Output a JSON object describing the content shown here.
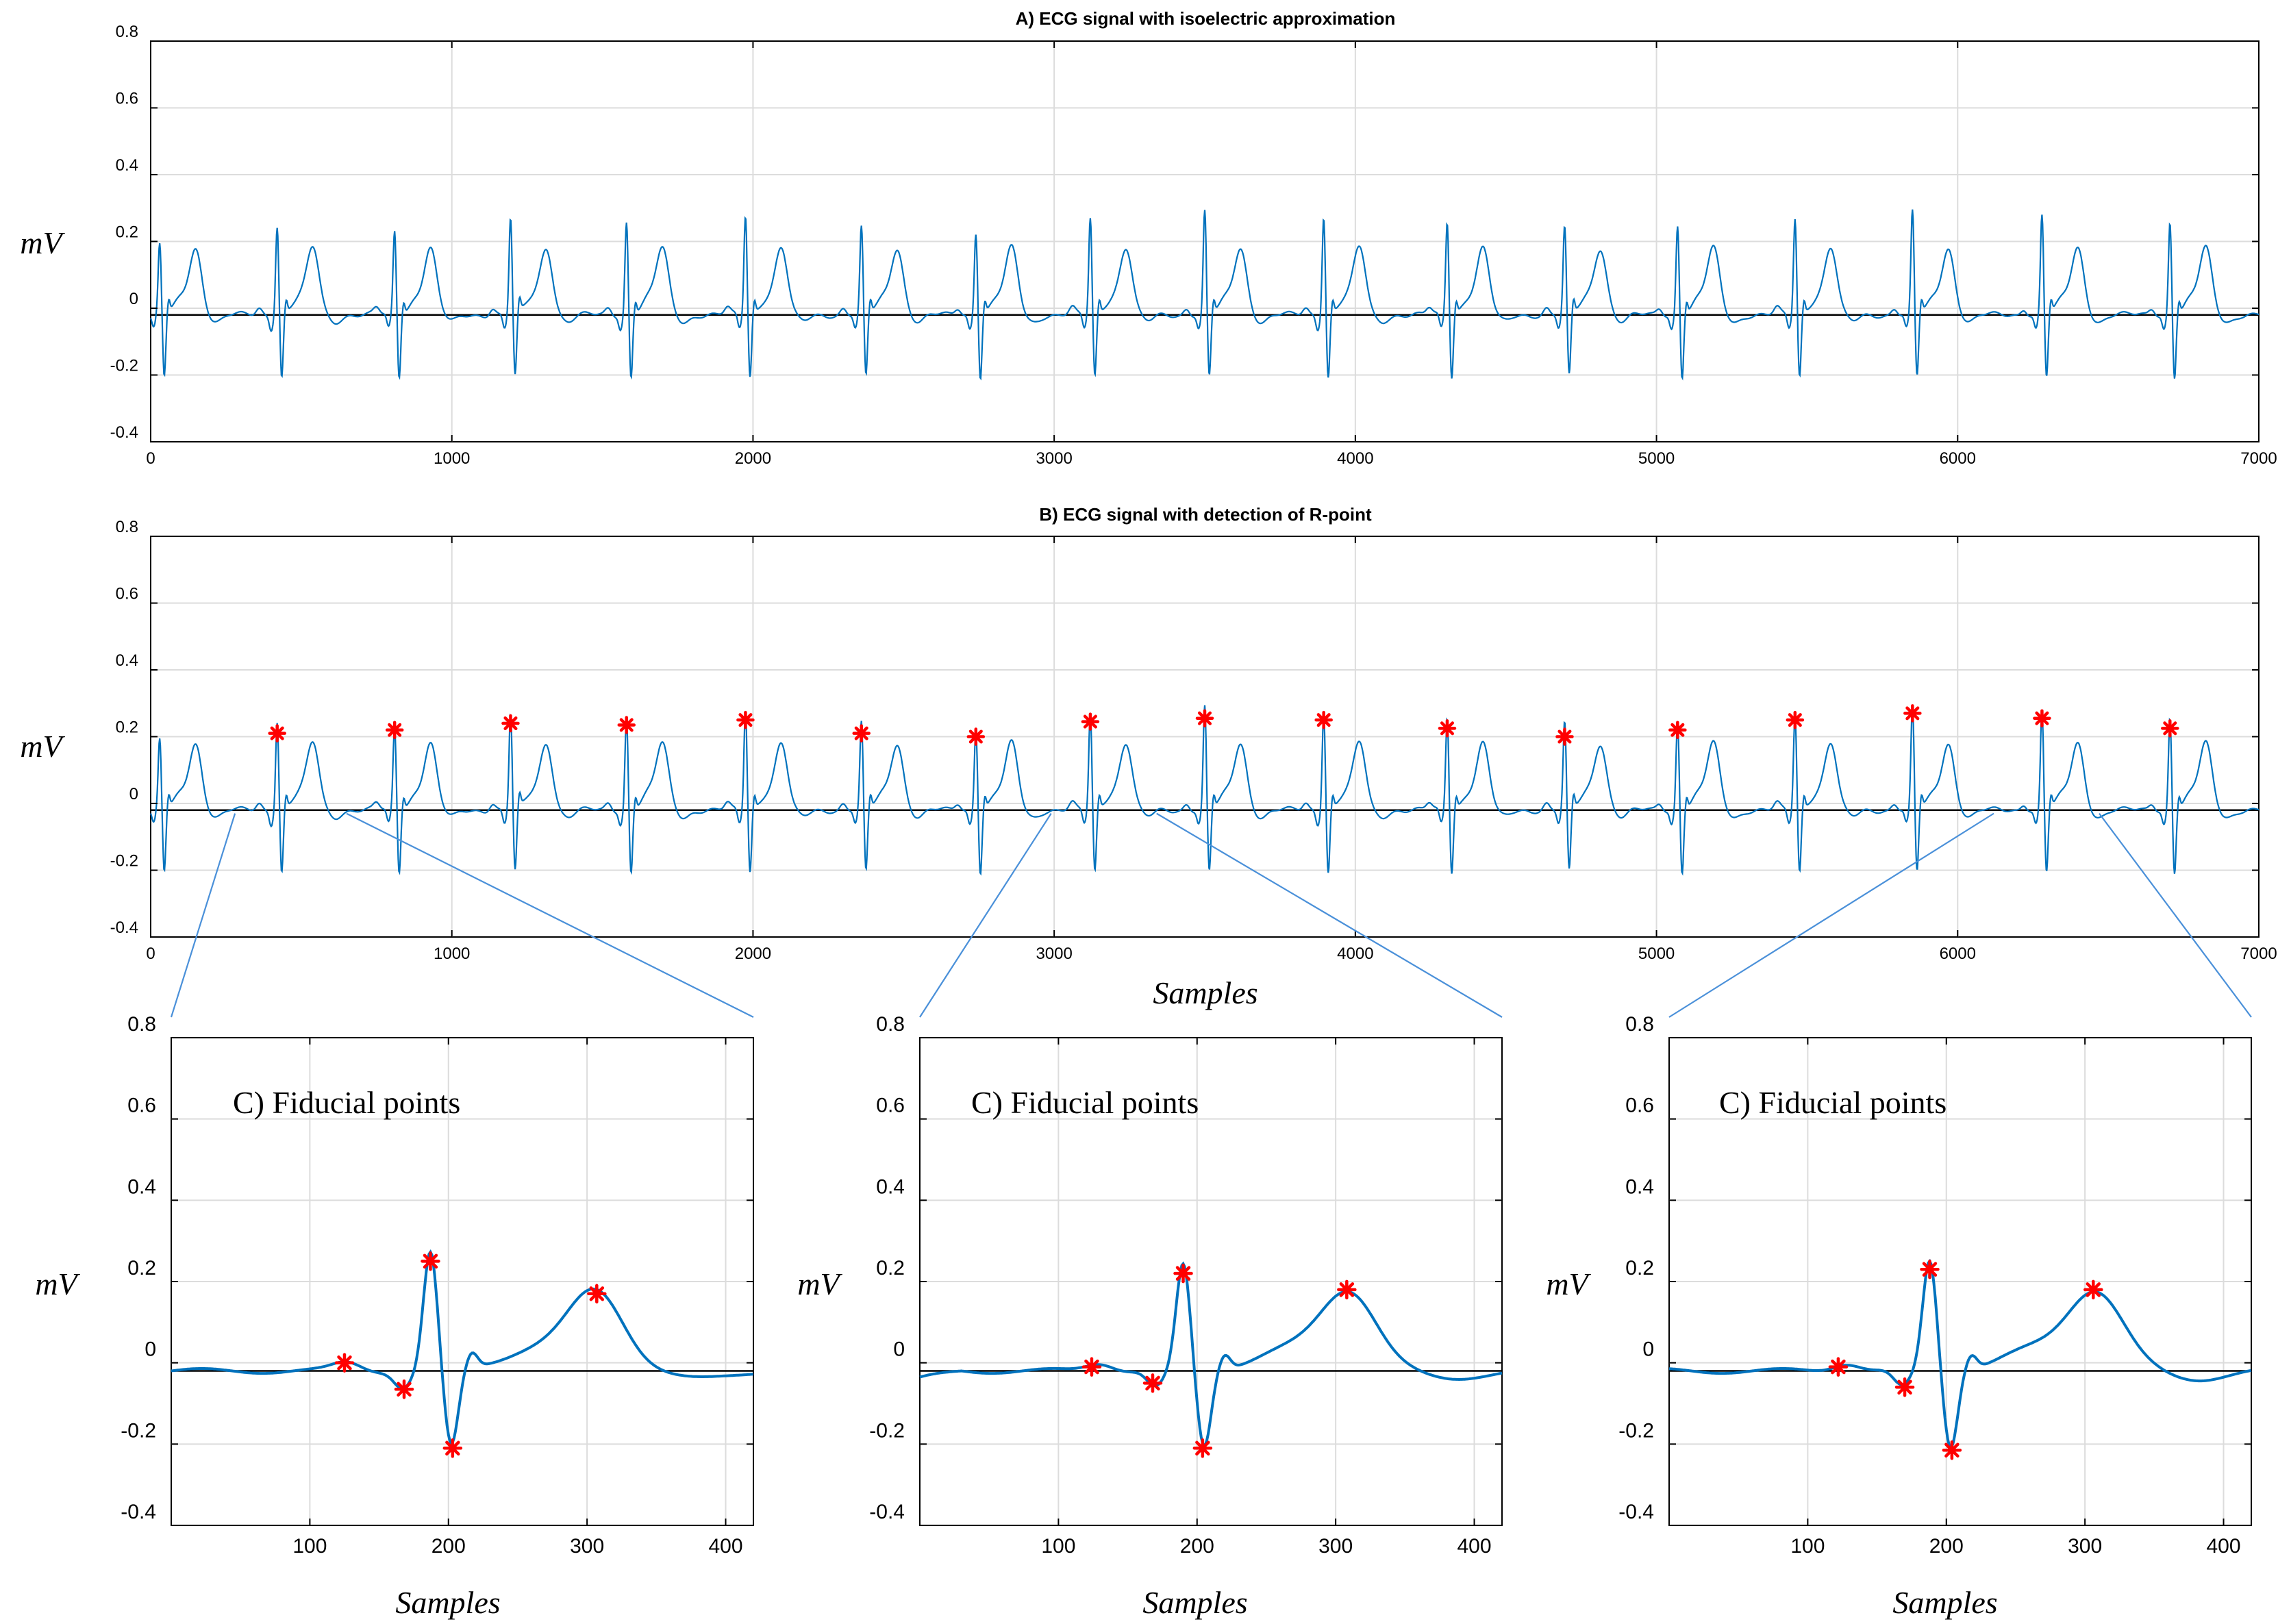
{
  "colors": {
    "signal": "#0072bd",
    "marker": "#ff0000",
    "zoom_line": "#4a90d9",
    "baseline": "#000000"
  },
  "chart_data": [
    {
      "id": "A",
      "type": "line",
      "title": "A) ECG signal with isoelectric approximation",
      "ylabel": "mV",
      "xlabel": "",
      "xlim": [
        0,
        7000
      ],
      "ylim": [
        -0.4,
        0.8
      ],
      "xticks": [
        0,
        1000,
        2000,
        3000,
        4000,
        5000,
        6000,
        7000
      ],
      "yticks": [
        -0.4,
        -0.2,
        0,
        0.2,
        0.4,
        0.6,
        0.8
      ],
      "ytick_labels": [
        "-0.4",
        "-0.2",
        "0",
        "0.2",
        "0.4",
        "0.6",
        "0.8"
      ],
      "grid": true,
      "isoelectric": -0.02,
      "beats": [
        {
          "r": 30,
          "amp": 0.18
        },
        {
          "r": 420,
          "amp": 0.24
        },
        {
          "r": 810,
          "amp": 0.22
        },
        {
          "r": 1195,
          "amp": 0.26
        },
        {
          "r": 1580,
          "amp": 0.25
        },
        {
          "r": 1975,
          "amp": 0.27
        },
        {
          "r": 2360,
          "amp": 0.23
        },
        {
          "r": 2740,
          "amp": 0.22
        },
        {
          "r": 3120,
          "amp": 0.26
        },
        {
          "r": 3500,
          "amp": 0.28
        },
        {
          "r": 3895,
          "amp": 0.27
        },
        {
          "r": 4305,
          "amp": 0.25
        },
        {
          "r": 4695,
          "amp": 0.23
        },
        {
          "r": 5070,
          "amp": 0.24
        },
        {
          "r": 5460,
          "amp": 0.26
        },
        {
          "r": 5850,
          "amp": 0.28
        },
        {
          "r": 6280,
          "amp": 0.27
        },
        {
          "r": 6705,
          "amp": 0.25
        }
      ]
    },
    {
      "id": "B",
      "type": "line",
      "title": "B) ECG signal with detection of R-point",
      "ylabel": "mV",
      "xlabel": "Samples",
      "xlim": [
        0,
        7000
      ],
      "ylim": [
        -0.4,
        0.8
      ],
      "xticks": [
        0,
        1000,
        2000,
        3000,
        4000,
        5000,
        6000,
        7000
      ],
      "yticks": [
        -0.4,
        -0.2,
        0,
        0.2,
        0.4,
        0.6,
        0.8
      ],
      "ytick_labels": [
        "-0.4",
        "-0.2",
        "0",
        "0.2",
        "0.4",
        "0.6",
        "0.8"
      ],
      "grid": true,
      "isoelectric": -0.02,
      "r_points": [
        {
          "x": 420,
          "y": 0.21
        },
        {
          "x": 810,
          "y": 0.22
        },
        {
          "x": 1195,
          "y": 0.24
        },
        {
          "x": 1580,
          "y": 0.235
        },
        {
          "x": 1975,
          "y": 0.25
        },
        {
          "x": 2360,
          "y": 0.21
        },
        {
          "x": 2740,
          "y": 0.2
        },
        {
          "x": 3120,
          "y": 0.245
        },
        {
          "x": 3500,
          "y": 0.255
        },
        {
          "x": 3895,
          "y": 0.25
        },
        {
          "x": 4305,
          "y": 0.225
        },
        {
          "x": 4695,
          "y": 0.2
        },
        {
          "x": 5070,
          "y": 0.22
        },
        {
          "x": 5460,
          "y": 0.25
        },
        {
          "x": 5850,
          "y": 0.27
        },
        {
          "x": 6280,
          "y": 0.255
        },
        {
          "x": 6705,
          "y": 0.225
        }
      ],
      "zoom_windows": [
        [
          280,
          650
        ],
        [
          2990,
          3340
        ],
        [
          6120,
          6470
        ]
      ]
    },
    {
      "id": "C1",
      "type": "line",
      "annotation": "C) Fiducial points",
      "ylabel": "mV",
      "xlabel": "Samples",
      "xlim": [
        0,
        420
      ],
      "ylim": [
        -0.4,
        0.8
      ],
      "xticks": [
        100,
        200,
        300,
        400
      ],
      "yticks": [
        -0.4,
        -0.2,
        0,
        0.2,
        0.4,
        0.6,
        0.8
      ],
      "ytick_labels": [
        "-0.4",
        "-0.2",
        "0",
        "0.2",
        "0.4",
        "0.6",
        "0.8"
      ],
      "grid": true,
      "isoelectric": -0.02,
      "fiducial_points": [
        {
          "x": 125,
          "y": 0.0
        },
        {
          "x": 168,
          "y": -0.065
        },
        {
          "x": 187,
          "y": 0.25
        },
        {
          "x": 203,
          "y": -0.21
        },
        {
          "x": 307,
          "y": 0.17
        }
      ]
    },
    {
      "id": "C2",
      "type": "line",
      "annotation": "C) Fiducial points",
      "ylabel": "mV",
      "xlabel": "Samples",
      "xlim": [
        0,
        420
      ],
      "ylim": [
        -0.4,
        0.8
      ],
      "xticks": [
        100,
        200,
        300,
        400
      ],
      "yticks": [
        -0.4,
        -0.2,
        0,
        0.2,
        0.4,
        0.6,
        0.8
      ],
      "ytick_labels": [
        "-0.4",
        "-0.2",
        "0",
        "0.2",
        "0.4",
        "0.6",
        "0.8"
      ],
      "grid": true,
      "isoelectric": -0.02,
      "fiducial_points": [
        {
          "x": 124,
          "y": -0.01
        },
        {
          "x": 168,
          "y": -0.05
        },
        {
          "x": 190,
          "y": 0.22
        },
        {
          "x": 204,
          "y": -0.21
        },
        {
          "x": 308,
          "y": 0.18
        }
      ]
    },
    {
      "id": "C3",
      "type": "line",
      "annotation": "C) Fiducial points",
      "ylabel": "mV",
      "xlabel": "Samples",
      "xlim": [
        0,
        420
      ],
      "ylim": [
        -0.4,
        0.8
      ],
      "xticks": [
        100,
        200,
        300,
        400
      ],
      "yticks": [
        -0.4,
        -0.2,
        0,
        0.2,
        0.4,
        0.6,
        0.8
      ],
      "ytick_labels": [
        "-0.4",
        "-0.2",
        "0",
        "0.2",
        "0.4",
        "0.6",
        "0.8"
      ],
      "grid": true,
      "isoelectric": -0.02,
      "fiducial_points": [
        {
          "x": 122,
          "y": -0.01
        },
        {
          "x": 170,
          "y": -0.06
        },
        {
          "x": 188,
          "y": 0.23
        },
        {
          "x": 204,
          "y": -0.215
        },
        {
          "x": 306,
          "y": 0.18
        }
      ]
    }
  ]
}
